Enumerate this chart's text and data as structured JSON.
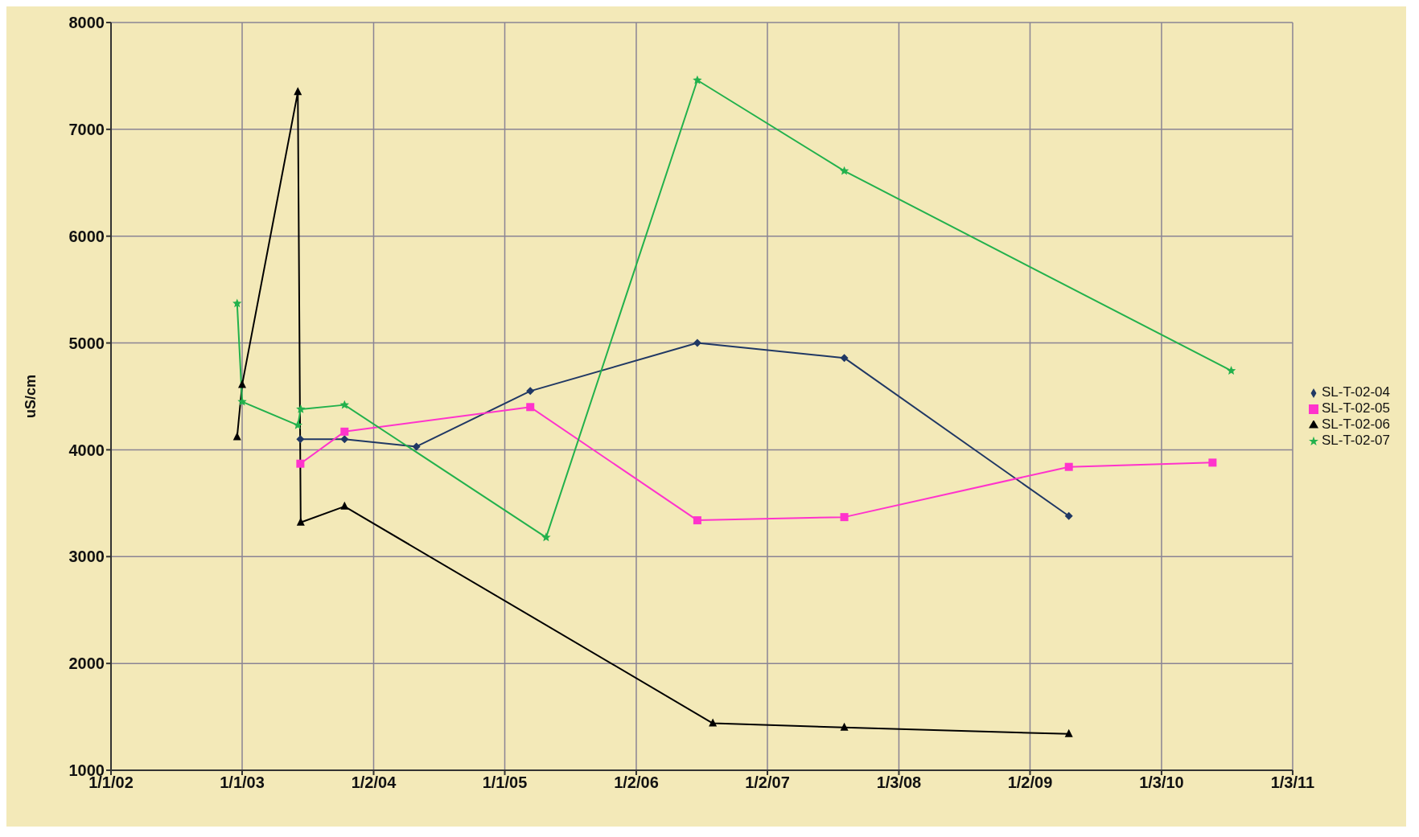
{
  "chart_data": {
    "type": "line",
    "ylabel": "uS/cm",
    "xlim": [
      "2002-01-01",
      "2011-01-03"
    ],
    "xticks": [
      {
        "value": "2002-01-01",
        "label": "1/1/02"
      },
      {
        "value": "2003-01-01",
        "label": "1/1/03"
      },
      {
        "value": "2004-01-02",
        "label": "1/2/04"
      },
      {
        "value": "2005-01-01",
        "label": "1/1/05"
      },
      {
        "value": "2006-01-02",
        "label": "1/2/06"
      },
      {
        "value": "2007-01-02",
        "label": "1/2/07"
      },
      {
        "value": "2008-01-03",
        "label": "1/3/08"
      },
      {
        "value": "2009-01-02",
        "label": "1/2/09"
      },
      {
        "value": "2010-01-03",
        "label": "1/3/10"
      },
      {
        "value": "2011-01-03",
        "label": "1/3/11"
      }
    ],
    "ylim": [
      1000,
      8000
    ],
    "yticks": [
      1000,
      2000,
      3000,
      4000,
      5000,
      6000,
      7000,
      8000
    ],
    "grid": true,
    "legend": "right",
    "line_style": "solid",
    "series": [
      {
        "name": "SL-T-02-04",
        "color": "#203864",
        "marker": "diamond",
        "x": [
          "2003-06-12",
          "2003-10-13",
          "2004-04-30",
          "2005-03-13",
          "2006-06-21",
          "2007-08-04",
          "2009-04-20"
        ],
        "values": [
          4100,
          4100,
          4030,
          4550,
          5000,
          4860,
          3380
        ]
      },
      {
        "name": "SL-T-02-05",
        "color": "#ff33cc",
        "marker": "square",
        "x": [
          "2003-06-12",
          "2003-10-13",
          "2005-03-13",
          "2006-06-21",
          "2007-08-04",
          "2009-04-20",
          "2010-05-25"
        ],
        "values": [
          3870,
          4170,
          4400,
          3340,
          3370,
          3840,
          3880
        ]
      },
      {
        "name": "SL-T-02-06",
        "color": "#000000",
        "marker": "triangle",
        "x": [
          "2002-12-18",
          "2003-01-01",
          "2003-06-05",
          "2003-06-13",
          "2003-10-13",
          "2006-08-03",
          "2007-08-04",
          "2009-04-20"
        ],
        "values": [
          4120,
          4610,
          7350,
          3320,
          3470,
          1440,
          1400,
          1340
        ]
      },
      {
        "name": "SL-T-02-07",
        "color": "#22b14c",
        "marker": "star",
        "x": [
          "2002-12-18",
          "2003-01-01",
          "2003-06-05",
          "2003-06-13",
          "2003-10-13",
          "2005-04-26",
          "2006-06-21",
          "2007-08-04",
          "2010-07-16"
        ],
        "values": [
          5370,
          4450,
          4230,
          4380,
          4420,
          3180,
          7460,
          6610,
          4740
        ]
      }
    ]
  }
}
